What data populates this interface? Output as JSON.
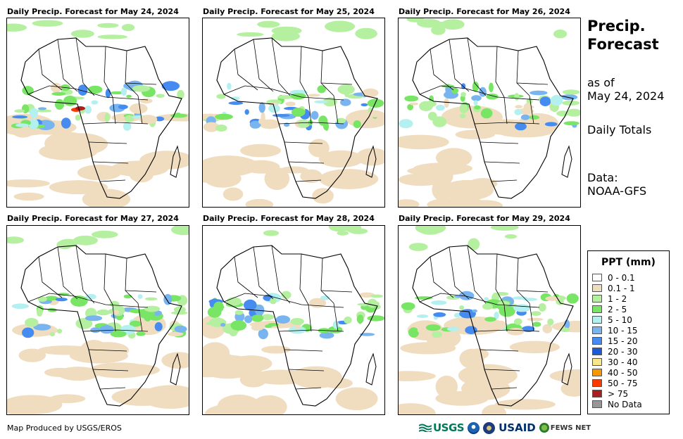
{
  "panels": [
    {
      "title": "Daily Precip. Forecast for May 24, 2024"
    },
    {
      "title": "Daily Precip. Forecast for May 25, 2024"
    },
    {
      "title": "Daily Precip. Forecast for May 26, 2024"
    },
    {
      "title": "Daily Precip. Forecast for May 27, 2024"
    },
    {
      "title": "Daily Precip. Forecast for May 28, 2024"
    },
    {
      "title": "Daily Precip. Forecast for May 29, 2024"
    }
  ],
  "sidebar": {
    "title_line1": "Precip.",
    "title_line2": "Forecast",
    "asof_line1": "as of",
    "asof_line2": "May 24, 2024",
    "period": "Daily Totals",
    "data_line1": "Data:",
    "data_line2": "NOAA-GFS"
  },
  "legend": {
    "title": "PPT (mm)",
    "items": [
      {
        "label": "0 - 0.1",
        "color": "#ffffff"
      },
      {
        "label": "0.1 - 1",
        "color": "#f0dcbe"
      },
      {
        "label": "1 - 2",
        "color": "#b4f0a0"
      },
      {
        "label": "2 - 5",
        "color": "#78e664"
      },
      {
        "label": "5 - 10",
        "color": "#b4f0f0"
      },
      {
        "label": "10 - 15",
        "color": "#78b4f0"
      },
      {
        "label": "15 - 20",
        "color": "#468cf0"
      },
      {
        "label": "20 - 30",
        "color": "#1e5ad2"
      },
      {
        "label": "30 - 40",
        "color": "#fae68c"
      },
      {
        "label": "40 - 50",
        "color": "#fa9600"
      },
      {
        "label": "50 - 75",
        "color": "#fa3c00"
      },
      {
        "label": "> 75",
        "color": "#aa1e1e"
      },
      {
        "label": "No Data",
        "color": "#969696"
      }
    ]
  },
  "footer": {
    "credit": "Map Produced by USGS/EROS",
    "logos": {
      "usgs": "USGS",
      "usaid": "USAID",
      "fews": "FEWS NET"
    }
  }
}
